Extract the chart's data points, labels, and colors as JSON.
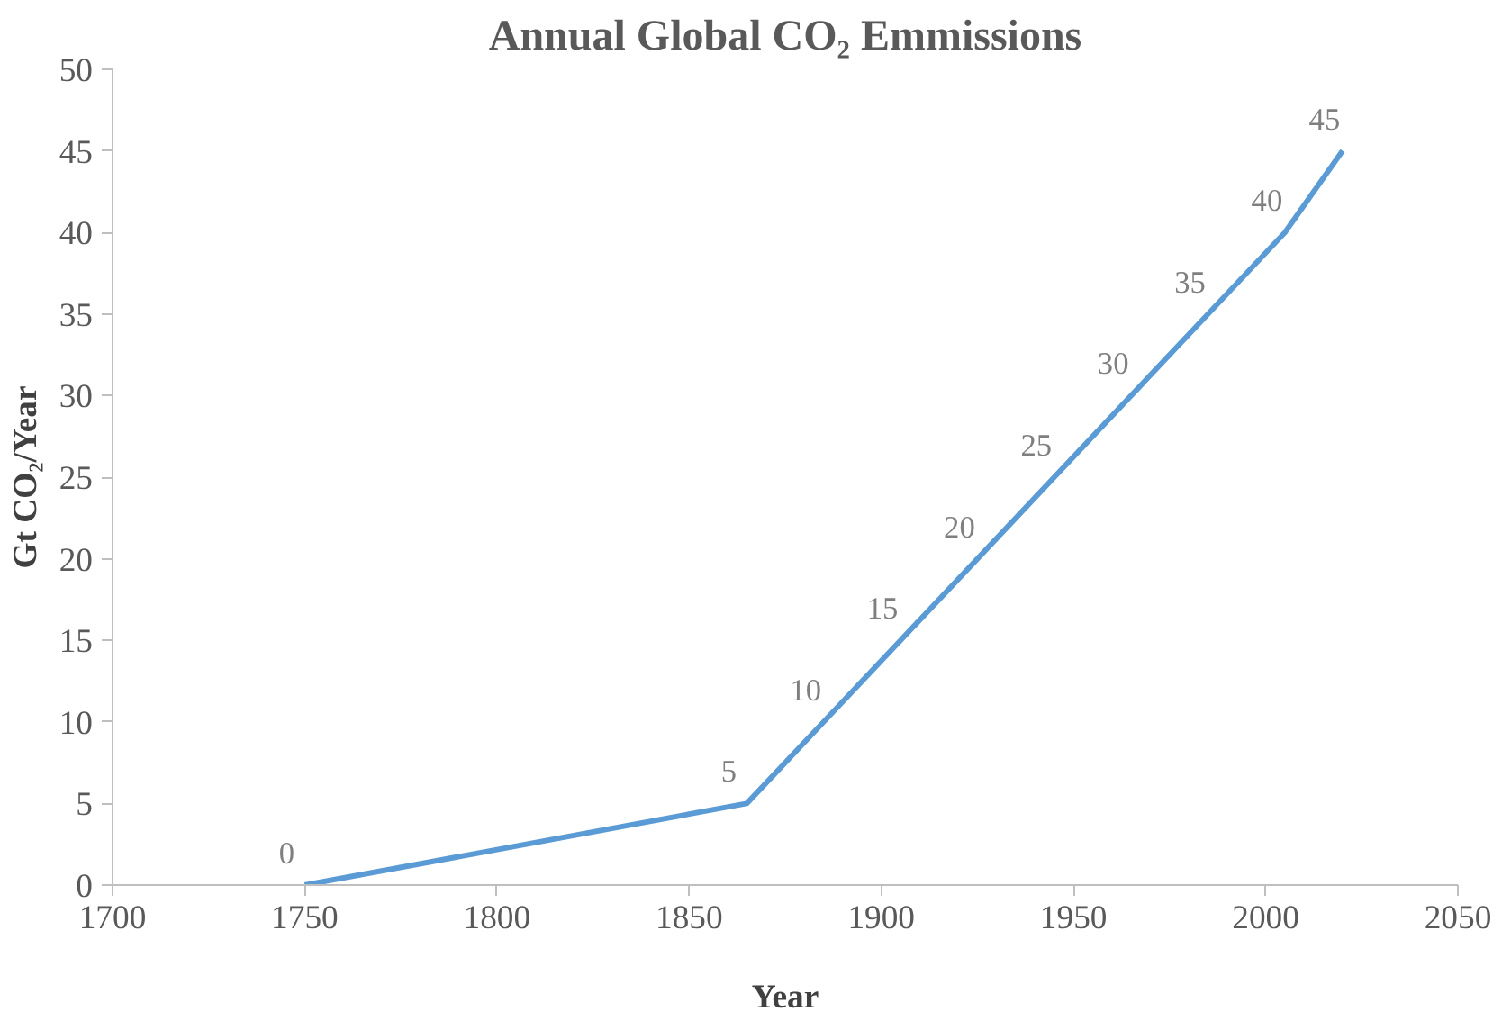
{
  "chart_data": {
    "type": "line",
    "title": "Annual Global CO₂ Emmissions",
    "xlabel": "Year",
    "ylabel": "Gt CO₂/Year",
    "x": [
      1750,
      1865,
      1885,
      1905,
      1925,
      1945,
      1965,
      1985,
      2005,
      2020
    ],
    "series": [
      {
        "color": "#5b9bd5",
        "values": [
          0,
          5,
          10,
          15,
          20,
          25,
          30,
          35,
          40,
          45
        ]
      }
    ],
    "xlim": [
      1700,
      2050
    ],
    "xticks": [
      1700,
      1750,
      1800,
      1850,
      1900,
      1950,
      2000,
      2050
    ],
    "ylim": [
      0,
      50
    ],
    "yticks": [
      0,
      5,
      10,
      15,
      20,
      25,
      30,
      35,
      40,
      45,
      50
    ],
    "data_labels": true,
    "grid": false,
    "marker": "none",
    "line_style": "solid"
  }
}
